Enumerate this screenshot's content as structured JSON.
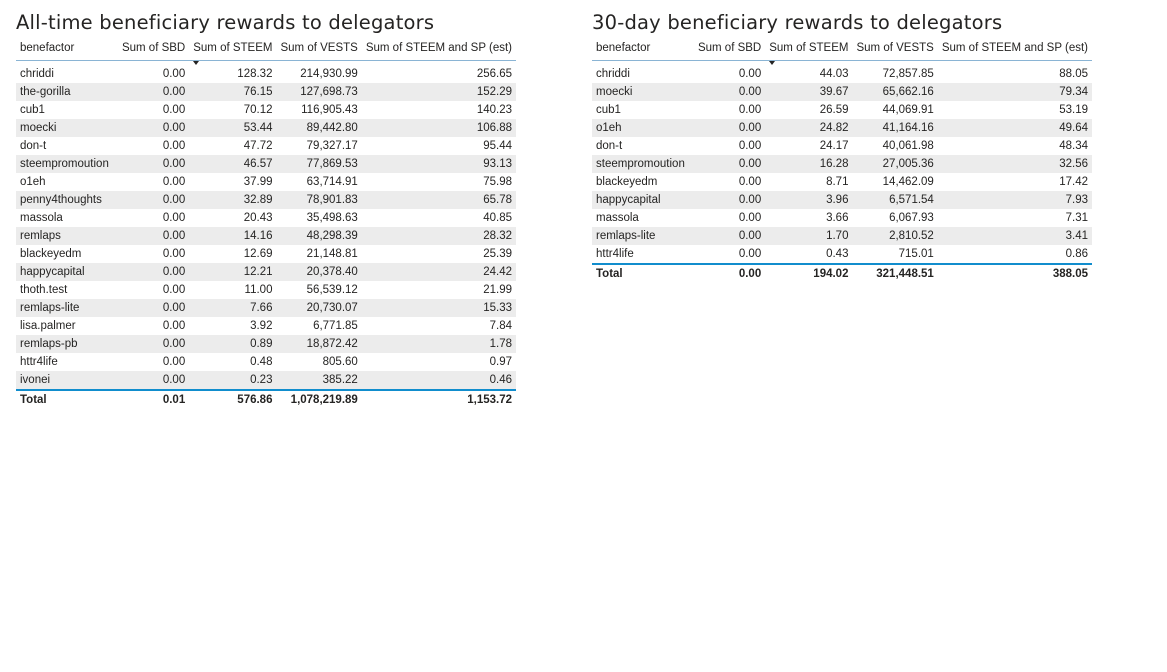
{
  "tables": [
    {
      "title": "All-time beneficiary rewards to delegators",
      "headers": [
        "benefactor",
        "Sum of SBD",
        "Sum of STEEM",
        "Sum of VESTS",
        "Sum of STEEM and SP (est)"
      ],
      "sort_column": "Sum of STEEM",
      "sort_direction": "descending",
      "rows": [
        [
          "chriddi",
          "0.00",
          "128.32",
          "214,930.99",
          "256.65"
        ],
        [
          "the-gorilla",
          "0.00",
          "76.15",
          "127,698.73",
          "152.29"
        ],
        [
          "cub1",
          "0.00",
          "70.12",
          "116,905.43",
          "140.23"
        ],
        [
          "moecki",
          "0.00",
          "53.44",
          "89,442.80",
          "106.88"
        ],
        [
          "don-t",
          "0.00",
          "47.72",
          "79,327.17",
          "95.44"
        ],
        [
          "steempromoution",
          "0.00",
          "46.57",
          "77,869.53",
          "93.13"
        ],
        [
          "o1eh",
          "0.00",
          "37.99",
          "63,714.91",
          "75.98"
        ],
        [
          "penny4thoughts",
          "0.00",
          "32.89",
          "78,901.83",
          "65.78"
        ],
        [
          "massola",
          "0.00",
          "20.43",
          "35,498.63",
          "40.85"
        ],
        [
          "remlaps",
          "0.00",
          "14.16",
          "48,298.39",
          "28.32"
        ],
        [
          "blackeyedm",
          "0.00",
          "12.69",
          "21,148.81",
          "25.39"
        ],
        [
          "happycapital",
          "0.00",
          "12.21",
          "20,378.40",
          "24.42"
        ],
        [
          "thoth.test",
          "0.00",
          "11.00",
          "56,539.12",
          "21.99"
        ],
        [
          "remlaps-lite",
          "0.00",
          "7.66",
          "20,730.07",
          "15.33"
        ],
        [
          "lisa.palmer",
          "0.00",
          "3.92",
          "6,771.85",
          "7.84"
        ],
        [
          "remlaps-pb",
          "0.00",
          "0.89",
          "18,872.42",
          "1.78"
        ],
        [
          "httr4life",
          "0.00",
          "0.48",
          "805.60",
          "0.97"
        ],
        [
          "ivonei",
          "0.00",
          "0.23",
          "385.22",
          "0.46"
        ]
      ],
      "total": [
        "Total",
        "0.01",
        "576.86",
        "1,078,219.89",
        "1,153.72"
      ]
    },
    {
      "title": "30-day beneficiary rewards to delegators",
      "headers": [
        "benefactor",
        "Sum of SBD",
        "Sum of STEEM",
        "Sum of VESTS",
        "Sum of STEEM and SP (est)"
      ],
      "sort_column": "Sum of STEEM",
      "sort_direction": "descending",
      "rows": [
        [
          "chriddi",
          "0.00",
          "44.03",
          "72,857.85",
          "88.05"
        ],
        [
          "moecki",
          "0.00",
          "39.67",
          "65,662.16",
          "79.34"
        ],
        [
          "cub1",
          "0.00",
          "26.59",
          "44,069.91",
          "53.19"
        ],
        [
          "o1eh",
          "0.00",
          "24.82",
          "41,164.16",
          "49.64"
        ],
        [
          "don-t",
          "0.00",
          "24.17",
          "40,061.98",
          "48.34"
        ],
        [
          "steempromoution",
          "0.00",
          "16.28",
          "27,005.36",
          "32.56"
        ],
        [
          "blackeyedm",
          "0.00",
          "8.71",
          "14,462.09",
          "17.42"
        ],
        [
          "happycapital",
          "0.00",
          "3.96",
          "6,571.54",
          "7.93"
        ],
        [
          "massola",
          "0.00",
          "3.66",
          "6,067.93",
          "7.31"
        ],
        [
          "remlaps-lite",
          "0.00",
          "1.70",
          "2,810.52",
          "3.41"
        ],
        [
          "httr4life",
          "0.00",
          "0.43",
          "715.01",
          "0.86"
        ]
      ],
      "total": [
        "Total",
        "0.00",
        "194.02",
        "321,448.51",
        "388.05"
      ]
    }
  ]
}
